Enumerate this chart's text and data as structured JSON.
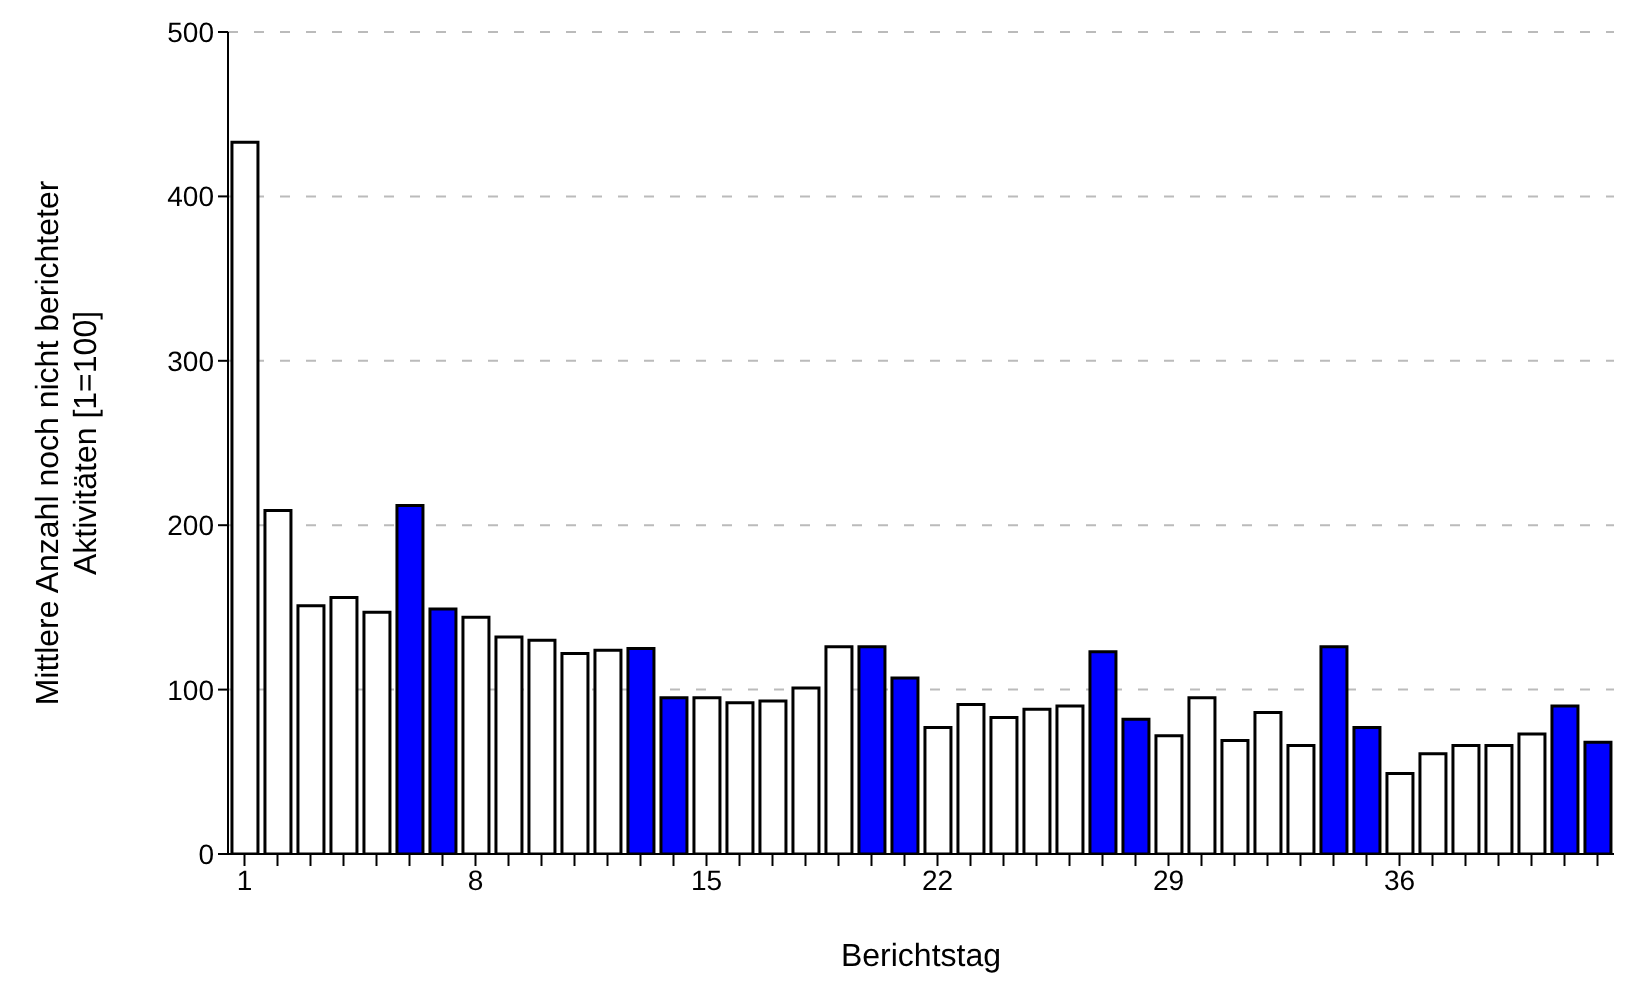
{
  "chart_data": {
    "type": "bar",
    "xlabel": "Berichtstag",
    "ylabel": "Mittlere Anzahl noch nicht berichteter Aktivitäten [1=100]",
    "categories": [
      "1",
      null,
      null,
      null,
      null,
      null,
      null,
      "8",
      null,
      null,
      null,
      null,
      null,
      null,
      "15",
      null,
      null,
      null,
      null,
      null,
      null,
      "22",
      null,
      null,
      null,
      null,
      null,
      null,
      "29",
      null,
      null,
      null,
      null,
      null,
      null,
      "36",
      null,
      null,
      null,
      null,
      null,
      null
    ],
    "values": [
      433,
      209,
      151,
      156,
      147,
      212,
      149,
      144,
      132,
      130,
      122,
      124,
      125,
      95,
      95,
      92,
      93,
      101,
      126,
      126,
      107,
      77,
      91,
      83,
      88,
      90,
      123,
      82,
      72,
      95,
      69,
      86,
      66,
      126,
      77,
      49,
      61,
      66,
      66,
      73,
      90,
      68
    ],
    "colors": [
      "#ffffff",
      "#ffffff",
      "#ffffff",
      "#ffffff",
      "#ffffff",
      "#0000ff",
      "#0000ff",
      "#ffffff",
      "#ffffff",
      "#ffffff",
      "#ffffff",
      "#ffffff",
      "#0000ff",
      "#0000ff",
      "#ffffff",
      "#ffffff",
      "#ffffff",
      "#ffffff",
      "#ffffff",
      "#0000ff",
      "#0000ff",
      "#ffffff",
      "#ffffff",
      "#ffffff",
      "#ffffff",
      "#ffffff",
      "#0000ff",
      "#0000ff",
      "#ffffff",
      "#ffffff",
      "#ffffff",
      "#ffffff",
      "#ffffff",
      "#0000ff",
      "#0000ff",
      "#ffffff",
      "#ffffff",
      "#ffffff",
      "#ffffff",
      "#ffffff",
      "#0000ff",
      "#0000ff"
    ],
    "ylim": [
      0,
      500
    ],
    "yticks": [
      0,
      100,
      200,
      300,
      400,
      500
    ],
    "grid": "y"
  }
}
